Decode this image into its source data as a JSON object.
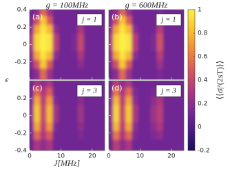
{
  "chart_data": [
    {
      "type": "heatmap",
      "title": "g = 100MHz",
      "panel_label": "(a)",
      "annotation": "j = 1",
      "x": [
        1,
        3,
        5,
        7,
        9,
        11,
        13,
        15,
        17,
        19,
        21,
        23
      ],
      "y": [
        0.35,
        0.25,
        0.15,
        0.05,
        -0.05,
        -0.15,
        -0.25,
        -0.35
      ],
      "z": [
        [
          0.1,
          0.2,
          0.55,
          0.25,
          0.1,
          0.1,
          0.1,
          0.1,
          0.1,
          0.1,
          0.1,
          0.1
        ],
        [
          0.15,
          0.45,
          0.85,
          0.5,
          0.1,
          0.1,
          0.1,
          0.1,
          0.2,
          0.1,
          0.1,
          0.1
        ],
        [
          0.2,
          0.75,
          0.95,
          0.8,
          0.2,
          0.1,
          0.1,
          0.1,
          0.3,
          0.1,
          0.1,
          0.1
        ],
        [
          0.3,
          0.9,
          1,
          0.95,
          0.35,
          0.1,
          0.1,
          0.15,
          0.4,
          0.1,
          0.1,
          0.1
        ],
        [
          0.3,
          0.9,
          1,
          0.95,
          0.35,
          0.1,
          0.1,
          0.15,
          0.4,
          0.1,
          0.1,
          0.1
        ],
        [
          0.2,
          0.75,
          0.95,
          0.8,
          0.2,
          0.1,
          0.1,
          0.1,
          0.3,
          0.1,
          0.1,
          0.1
        ],
        [
          0.15,
          0.45,
          0.85,
          0.5,
          0.1,
          0.1,
          0.1,
          0.1,
          0.2,
          0.1,
          0.1,
          0.1
        ],
        [
          0.1,
          0.2,
          0.55,
          0.25,
          0.1,
          0.1,
          0.1,
          0.1,
          0.1,
          0.1,
          0.1,
          0.1
        ]
      ],
      "xlim": [
        0,
        24
      ],
      "ylim": [
        -0.4,
        0.4
      ],
      "xticks": [
        0,
        10,
        20
      ],
      "yticks": [
        0.4,
        0.2,
        0,
        -0.2
      ]
    },
    {
      "type": "heatmap",
      "title": "g = 600MHz",
      "panel_label": "(b)",
      "annotation": "j = 1",
      "x": [
        1,
        3,
        5,
        7,
        9,
        11,
        13,
        15,
        17,
        19,
        21,
        23
      ],
      "y": [
        0.35,
        0.25,
        0.15,
        0.05,
        -0.05,
        -0.15,
        -0.25,
        -0.35
      ],
      "z": [
        [
          0.1,
          0.2,
          0.55,
          0.25,
          0.1,
          0.1,
          0.1,
          0.1,
          0.15,
          0.1,
          0.1,
          0.1
        ],
        [
          0.15,
          0.45,
          0.85,
          0.5,
          0.1,
          0.1,
          0.1,
          0.1,
          0.25,
          0.1,
          0.1,
          0.1
        ],
        [
          0.2,
          0.75,
          0.95,
          0.8,
          0.2,
          0.1,
          0.1,
          0.1,
          0.35,
          0.1,
          0.1,
          0.1
        ],
        [
          0.3,
          0.9,
          1,
          0.95,
          0.35,
          0.1,
          0.1,
          0.15,
          0.45,
          0.1,
          0.1,
          0.1
        ],
        [
          0.3,
          0.9,
          1,
          0.95,
          0.35,
          0.1,
          0.1,
          0.15,
          0.45,
          0.1,
          0.1,
          0.1
        ],
        [
          0.2,
          0.75,
          0.95,
          0.8,
          0.2,
          0.1,
          0.1,
          0.1,
          0.35,
          0.1,
          0.1,
          0.1
        ],
        [
          0.15,
          0.45,
          0.85,
          0.5,
          0.1,
          0.1,
          0.1,
          0.1,
          0.25,
          0.1,
          0.1,
          0.1
        ],
        [
          0.1,
          0.2,
          0.55,
          0.25,
          0.1,
          0.1,
          0.1,
          0.1,
          0.15,
          0.1,
          0.1,
          0.1
        ]
      ],
      "xlim": [
        0,
        24
      ],
      "ylim": [
        -0.4,
        0.4
      ],
      "xticks": [
        0,
        10,
        20
      ],
      "yticks": [
        0.4,
        0.2,
        0,
        -0.2
      ]
    },
    {
      "type": "heatmap",
      "panel_label": "(c)",
      "annotation": "j = 3",
      "x": [
        1,
        3,
        5,
        7,
        9,
        11,
        13,
        15,
        17,
        19,
        21,
        23
      ],
      "y": [
        0.35,
        0.25,
        0.15,
        0.05,
        -0.05,
        -0.15,
        -0.25,
        -0.35
      ],
      "z": [
        [
          0.1,
          0.3,
          0.2,
          0.3,
          0.1,
          0.1,
          0.1,
          0.1,
          0.1,
          0.1,
          0.1,
          0.1
        ],
        [
          0.1,
          0.55,
          0.3,
          0.5,
          0.1,
          0.1,
          0.1,
          0.1,
          0.15,
          0.1,
          0.1,
          0.1
        ],
        [
          0.15,
          0.75,
          0.35,
          0.7,
          0.15,
          0.1,
          0.1,
          0.1,
          0.2,
          0.1,
          0.1,
          0.1
        ],
        [
          0.2,
          0.85,
          0.4,
          0.8,
          0.25,
          0.1,
          0.1,
          0.1,
          0.25,
          0.1,
          0.1,
          0.1
        ],
        [
          0.2,
          0.85,
          0.4,
          0.8,
          0.25,
          0.1,
          0.1,
          0.1,
          0.25,
          0.1,
          0.1,
          0.1
        ],
        [
          0.15,
          0.75,
          0.35,
          0.7,
          0.15,
          0.1,
          0.1,
          0.1,
          0.2,
          0.1,
          0.1,
          0.1
        ],
        [
          0.1,
          0.55,
          0.3,
          0.5,
          0.1,
          0.1,
          0.1,
          0.1,
          0.15,
          0.1,
          0.1,
          0.1
        ],
        [
          0.1,
          0.3,
          0.2,
          0.3,
          0.1,
          0.1,
          0.1,
          0.1,
          0.1,
          0.1,
          0.1,
          0.1
        ]
      ],
      "xlim": [
        0,
        24
      ],
      "ylim": [
        -0.4,
        0.4
      ],
      "xticks": [
        0,
        10,
        20
      ],
      "yticks": [
        0.2,
        0,
        -0.2,
        -0.4
      ]
    },
    {
      "type": "heatmap",
      "panel_label": "(d)",
      "annotation": "j = 3",
      "x": [
        1,
        3,
        5,
        7,
        9,
        11,
        13,
        15,
        17,
        19,
        21,
        23
      ],
      "y": [
        0.35,
        0.25,
        0.15,
        0.05,
        -0.05,
        -0.15,
        -0.25,
        -0.35
      ],
      "z": [
        [
          0.1,
          0.35,
          0.2,
          0.3,
          0.1,
          0.1,
          0.1,
          0.1,
          0.1,
          0.1,
          0.1,
          0.1
        ],
        [
          0.1,
          0.6,
          0.3,
          0.55,
          0.15,
          0.1,
          0.1,
          0.15,
          0.2,
          0.1,
          0.1,
          0.1
        ],
        [
          0.15,
          0.8,
          0.35,
          0.75,
          0.2,
          0.1,
          0.1,
          0.2,
          0.3,
          0.1,
          0.1,
          0.1
        ],
        [
          0.2,
          0.9,
          0.4,
          0.85,
          0.3,
          0.1,
          0.1,
          0.25,
          0.35,
          0.1,
          0.1,
          0.1
        ],
        [
          0.2,
          0.9,
          0.4,
          0.85,
          0.3,
          0.1,
          0.1,
          0.25,
          0.35,
          0.1,
          0.1,
          0.1
        ],
        [
          0.15,
          0.8,
          0.35,
          0.75,
          0.2,
          0.1,
          0.1,
          0.2,
          0.3,
          0.1,
          0.1,
          0.1
        ],
        [
          0.1,
          0.6,
          0.3,
          0.55,
          0.15,
          0.1,
          0.1,
          0.15,
          0.2,
          0.1,
          0.1,
          0.1
        ],
        [
          0.1,
          0.35,
          0.2,
          0.3,
          0.1,
          0.1,
          0.1,
          0.1,
          0.1,
          0.1,
          0.1,
          0.1
        ]
      ],
      "xlim": [
        0,
        24
      ],
      "ylim": [
        -0.4,
        0.4
      ],
      "xticks": [
        0,
        10,
        20
      ],
      "yticks": [
        0.2,
        0,
        -0.2,
        -0.4
      ]
    }
  ],
  "shared": {
    "xlabel": "J[MHz]",
    "ylabel": "ϵ",
    "colorbar": {
      "label": "⟨⟨σ̄ⱼᶻ(2sT)⟩⟩",
      "zlim": [
        -0.2,
        1
      ],
      "ticks": [
        1,
        0.8,
        0.6,
        0.4,
        0.2,
        0,
        -0.2
      ],
      "colormap": [
        "#1f0c5c",
        "#4a1a8a",
        "#7b2a96",
        "#b03a7e",
        "#d8585c",
        "#f08a3a",
        "#f8c230",
        "#fbf04a"
      ]
    }
  }
}
